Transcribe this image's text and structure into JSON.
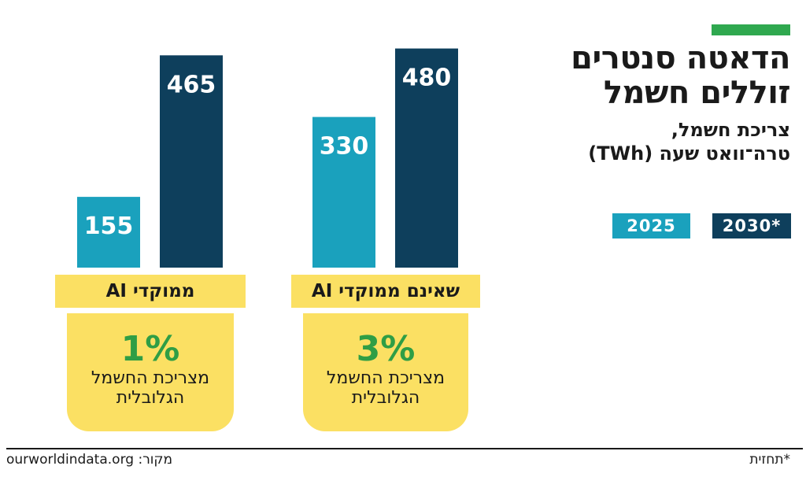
{
  "title_lines": [
    "הדאטה סנטרים",
    "זוללים חשמל"
  ],
  "subtitle_lines": [
    "צריכת חשמל,",
    "טרה־וואט שעה (TWh)"
  ],
  "legend": [
    {
      "label": "2030*",
      "color": "#0e3f5c"
    },
    {
      "label": "2025",
      "color": "#1aa1bd"
    }
  ],
  "chart_data": {
    "type": "bar",
    "categories": [
      "ממוקדי AI",
      "שאינם ממוקדי AI"
    ],
    "series": [
      {
        "name": "2025",
        "values": [
          155,
          330
        ],
        "color": "#1aa1bd"
      },
      {
        "name": "2030*",
        "values": [
          465,
          480
        ],
        "color": "#0e3f5c"
      }
    ],
    "ylim": [
      0,
      500
    ],
    "grid": false,
    "legend_position": "top-right",
    "shares": [
      {
        "percent": "1%",
        "text_lines": [
          "מצריכת החשמל",
          "הגלובלית"
        ]
      },
      {
        "percent": "3%",
        "text_lines": [
          "מצריכת החשמל",
          "הגלובלית"
        ]
      }
    ]
  },
  "footer": {
    "source": "מקור: ourworldindata.org",
    "note": "*תחזית"
  }
}
